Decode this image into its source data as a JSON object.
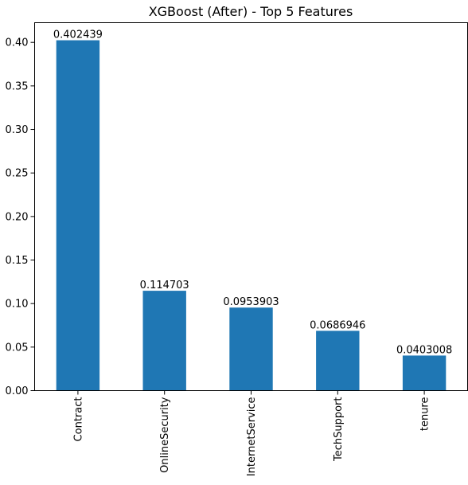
{
  "chart_data": {
    "type": "bar",
    "title": "XGBoost (After) - Top 5 Features",
    "xlabel": "",
    "ylabel": "",
    "categories": [
      "Contract",
      "OnlineSecurity",
      "InternetService",
      "TechSupport",
      "tenure"
    ],
    "values": [
      0.402439,
      0.114703,
      0.0953903,
      0.0686946,
      0.0403008
    ],
    "data_labels": [
      "0.402439",
      "0.114703",
      "0.0953903",
      "0.0686946",
      "0.0403008"
    ],
    "ylim": [
      0,
      0.4226
    ],
    "yticks": [
      0.0,
      0.05,
      0.1,
      0.15,
      0.2,
      0.25,
      0.3,
      0.35,
      0.4
    ],
    "ytick_labels": [
      "0.00",
      "0.05",
      "0.10",
      "0.15",
      "0.20",
      "0.25",
      "0.30",
      "0.35",
      "0.40"
    ],
    "grid": false,
    "legend": "none",
    "bar_color": "#1f77b4"
  }
}
